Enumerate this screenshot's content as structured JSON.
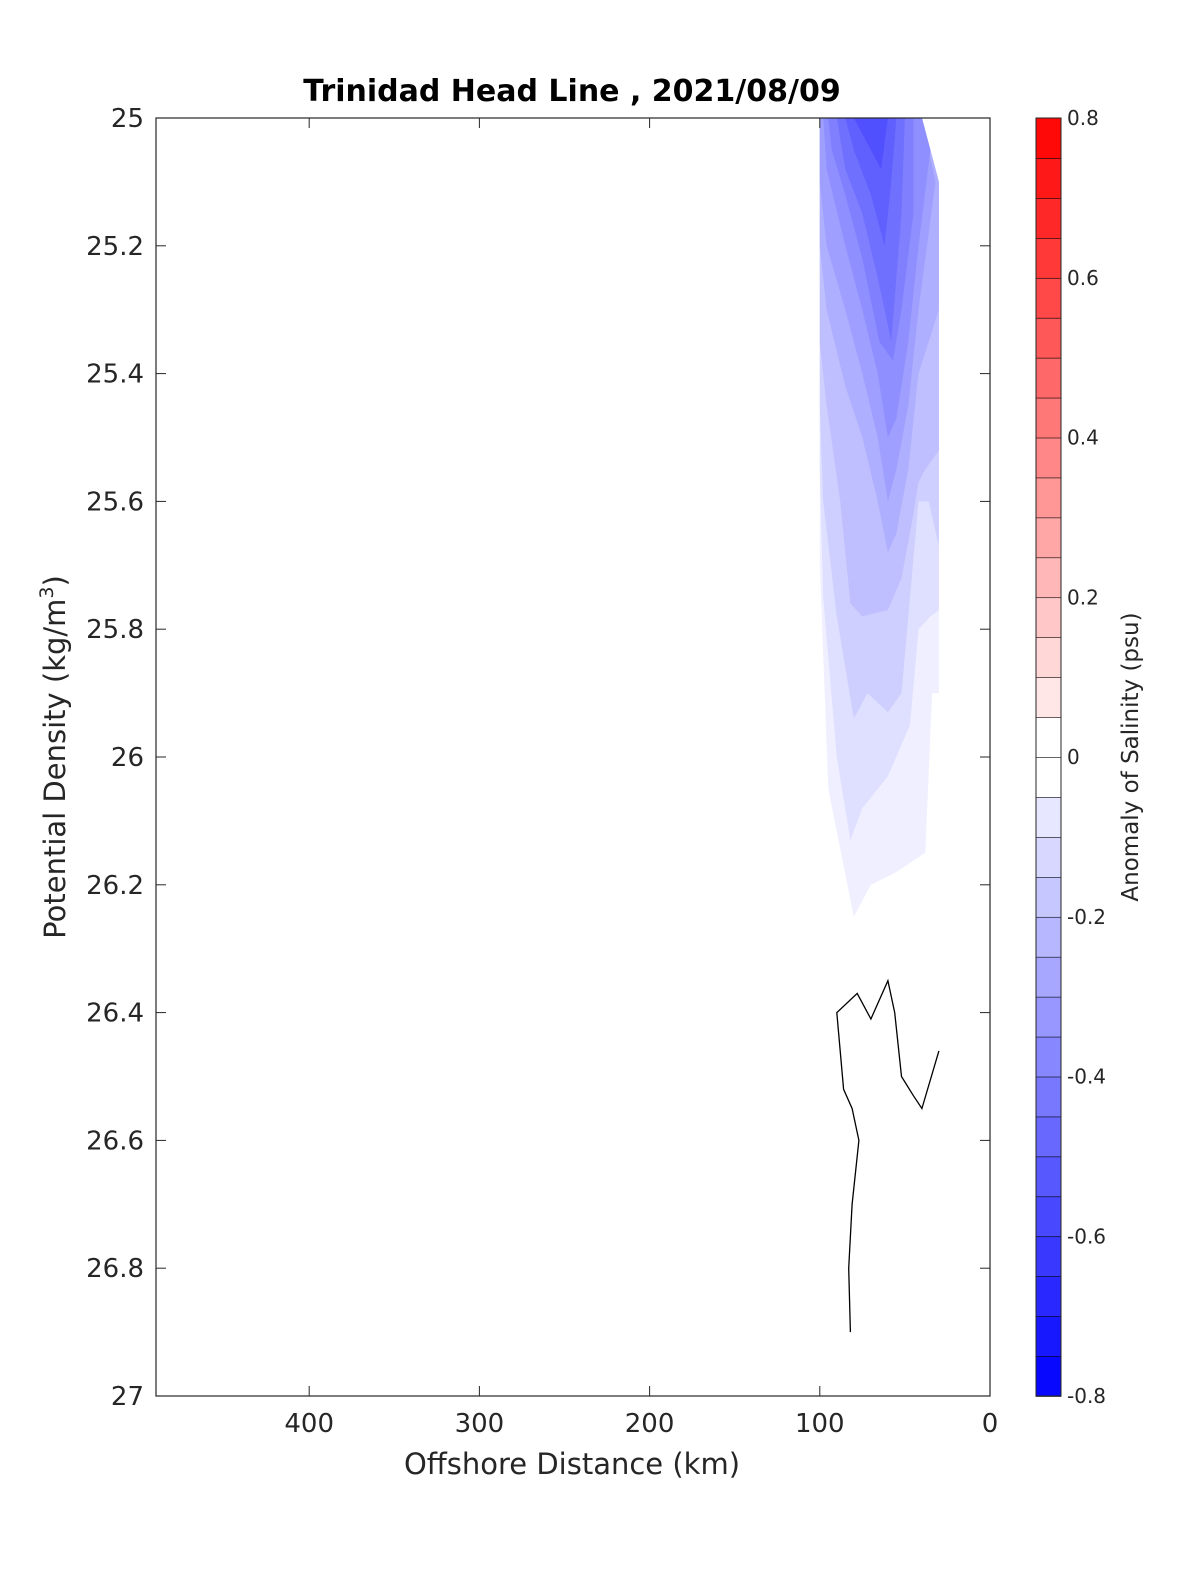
{
  "chart_data": {
    "type": "contour",
    "title": "Trinidad Head Line , 2021/08/09",
    "xlabel": "Offshore Distance (km)",
    "ylabel": "Potential Density (kg/m",
    "ylabel_sup": "3",
    "ylabel_close": ")",
    "xlim": [
      490,
      0
    ],
    "ylim": [
      25,
      27
    ],
    "x_reversed": true,
    "y_reversed": true,
    "xticks": [
      400,
      300,
      200,
      100,
      0
    ],
    "yticks": [
      25,
      25.2,
      25.4,
      25.6,
      25.8,
      26,
      26.2,
      26.4,
      26.6,
      26.8,
      27
    ],
    "colorbar": {
      "label": "Anomaly of Salinity (psu)",
      "range": [
        -0.8,
        0.8
      ],
      "step": 0.05,
      "ticks": [
        0.8,
        0.6,
        0.4,
        0.2,
        0,
        -0.2,
        -0.4,
        -0.6,
        -0.8
      ],
      "low_color": "#0000ff",
      "mid_color": "#ffffff",
      "high_color": "#ff0000"
    },
    "filled_regions": [
      {
        "level": -0.05,
        "points": [
          [
            100,
            25
          ],
          [
            40,
            25
          ],
          [
            30,
            25.1
          ],
          [
            30,
            25.9
          ],
          [
            34,
            25.9
          ],
          [
            38,
            26.15
          ],
          [
            55,
            26.18
          ],
          [
            70,
            26.2
          ],
          [
            80,
            26.25
          ],
          [
            95,
            26.05
          ],
          [
            100,
            25.7
          ]
        ]
      },
      {
        "level": -0.1,
        "points": [
          [
            100,
            25
          ],
          [
            40,
            25
          ],
          [
            30,
            25.1
          ],
          [
            30,
            25.77
          ],
          [
            35,
            25.78
          ],
          [
            42,
            25.8
          ],
          [
            47,
            25.95
          ],
          [
            60,
            26.03
          ],
          [
            75,
            26.08
          ],
          [
            82,
            26.13
          ],
          [
            90,
            26.0
          ],
          [
            98,
            25.75
          ],
          [
            100,
            25.55
          ]
        ]
      },
      {
        "level": -0.15,
        "points": [
          [
            100,
            25
          ],
          [
            40,
            25
          ],
          [
            30,
            25.1
          ],
          [
            30,
            25.67
          ],
          [
            36,
            25.6
          ],
          [
            42,
            25.6
          ],
          [
            47,
            25.75
          ],
          [
            52,
            25.9
          ],
          [
            60,
            25.93
          ],
          [
            72,
            25.9
          ],
          [
            80,
            25.94
          ],
          [
            90,
            25.78
          ],
          [
            98,
            25.6
          ],
          [
            100,
            25.45
          ]
        ]
      },
      {
        "level": -0.2,
        "points": [
          [
            100,
            25
          ],
          [
            40,
            25
          ],
          [
            30,
            25.1
          ],
          [
            30,
            25.52
          ],
          [
            38,
            25.55
          ],
          [
            42,
            25.57
          ],
          [
            45,
            25.62
          ],
          [
            52,
            25.72
          ],
          [
            60,
            25.77
          ],
          [
            75,
            25.78
          ],
          [
            82,
            25.76
          ],
          [
            88,
            25.6
          ],
          [
            96,
            25.45
          ],
          [
            100,
            25.35
          ]
        ]
      },
      {
        "level": -0.25,
        "points": [
          [
            100,
            25
          ],
          [
            40,
            25
          ],
          [
            30,
            25.1
          ],
          [
            30,
            25.3
          ],
          [
            36,
            25.35
          ],
          [
            42,
            25.4
          ],
          [
            48,
            25.55
          ],
          [
            55,
            25.65
          ],
          [
            60,
            25.68
          ],
          [
            66,
            25.6
          ],
          [
            75,
            25.5
          ],
          [
            85,
            25.42
          ],
          [
            96,
            25.3
          ],
          [
            100,
            25.2
          ]
        ]
      },
      {
        "level": -0.3,
        "points": [
          [
            100,
            25
          ],
          [
            40,
            25
          ],
          [
            32,
            25.1
          ],
          [
            37,
            25.2
          ],
          [
            42,
            25.3
          ],
          [
            48,
            25.45
          ],
          [
            55,
            25.55
          ],
          [
            60,
            25.6
          ],
          [
            66,
            25.5
          ],
          [
            75,
            25.4
          ],
          [
            85,
            25.3
          ],
          [
            96,
            25.2
          ],
          [
            100,
            25.1
          ]
        ]
      },
      {
        "level": -0.35,
        "points": [
          [
            98,
            25
          ],
          [
            40,
            25
          ],
          [
            35,
            25.05
          ],
          [
            42,
            25.2
          ],
          [
            48,
            25.35
          ],
          [
            55,
            25.47
          ],
          [
            60,
            25.5
          ],
          [
            66,
            25.4
          ],
          [
            75,
            25.3
          ],
          [
            85,
            25.2
          ],
          [
            96,
            25.08
          ]
        ]
      },
      {
        "level": -0.4,
        "points": [
          [
            95,
            25
          ],
          [
            45,
            25
          ],
          [
            45,
            25.15
          ],
          [
            52,
            25.3
          ],
          [
            57,
            25.38
          ],
          [
            65,
            25.35
          ],
          [
            75,
            25.22
          ],
          [
            85,
            25.12
          ],
          [
            93,
            25.05
          ]
        ]
      },
      {
        "level": -0.45,
        "points": [
          [
            90,
            25
          ],
          [
            50,
            25
          ],
          [
            52,
            25.15
          ],
          [
            58,
            25.35
          ],
          [
            66,
            25.25
          ],
          [
            75,
            25.15
          ],
          [
            85,
            25.08
          ]
        ]
      },
      {
        "level": -0.5,
        "points": [
          [
            85,
            25
          ],
          [
            55,
            25
          ],
          [
            58,
            25.1
          ],
          [
            62,
            25.2
          ],
          [
            70,
            25.12
          ],
          [
            80,
            25.05
          ]
        ]
      },
      {
        "level": -0.55,
        "points": [
          [
            80,
            25
          ],
          [
            60,
            25
          ],
          [
            64,
            25.08
          ],
          [
            70,
            25.05
          ],
          [
            76,
            25.02
          ]
        ]
      }
    ],
    "contour_line": {
      "level": 0,
      "points": [
        [
          30,
          26.46
        ],
        [
          40,
          26.55
        ],
        [
          45,
          26.53
        ],
        [
          52,
          26.5
        ],
        [
          56,
          26.4
        ],
        [
          60,
          26.35
        ],
        [
          70,
          26.41
        ],
        [
          78,
          26.37
        ],
        [
          90,
          26.4
        ],
        [
          86,
          26.52
        ],
        [
          81,
          26.55
        ],
        [
          77,
          26.6
        ],
        [
          81,
          26.7
        ],
        [
          83,
          26.8
        ],
        [
          82,
          26.9
        ]
      ]
    }
  }
}
